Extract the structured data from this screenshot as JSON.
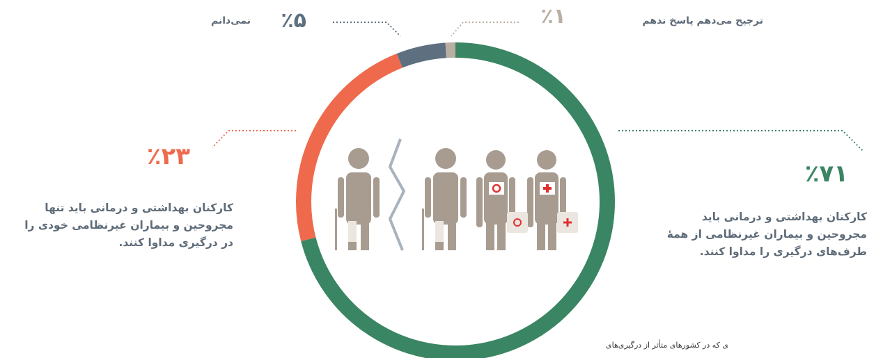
{
  "chart_data": {
    "type": "donut",
    "categories": [
      [
        "کارکنان بهداشتی و درمانی باید",
        "مجروحین و بیماران غیرنظامی از همهٔ",
        "طرف‌های درگیری را مداوا کنند."
      ],
      [
        "کارکنان بهداشتی و درمانی باید تنها",
        "مجروحین و بیماران  غیرنظامی خودی را",
        "در درگیری مداوا کنند."
      ],
      [
        "نمی‌دانم"
      ],
      [
        "ترجیح می‌دهم پاسخ ندهم"
      ]
    ],
    "values": [
      71,
      23,
      5,
      1
    ],
    "value_labels": [
      "٪۷۱",
      "٪۲۳",
      "٪۵",
      "٪۱"
    ],
    "colors": [
      "#3a8563",
      "#ef6a4c",
      "#5e7080",
      "#b9aea2"
    ],
    "footnote": "ی که در کشورهای متأثر از درگیری‌های"
  }
}
